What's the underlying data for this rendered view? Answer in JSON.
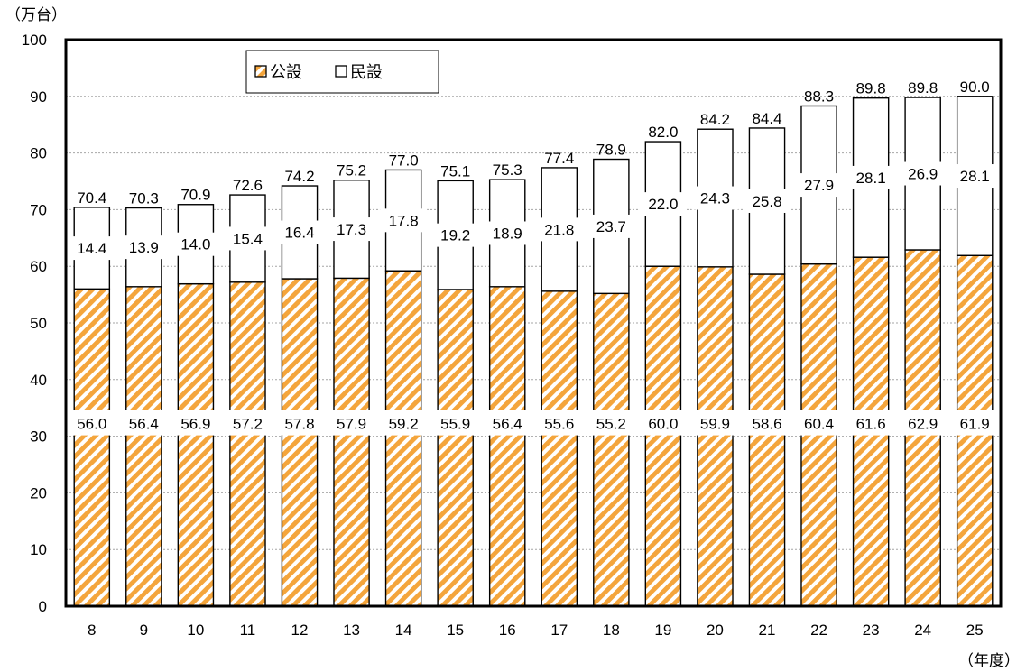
{
  "chart_data": {
    "type": "bar",
    "stacked": true,
    "y_unit_label": "（万台）",
    "x_unit_label": "（年度）",
    "categories": [
      "8",
      "9",
      "10",
      "11",
      "12",
      "13",
      "14",
      "15",
      "16",
      "17",
      "18",
      "19",
      "20",
      "21",
      "22",
      "23",
      "24",
      "25"
    ],
    "series": [
      {
        "name": "公設",
        "values": [
          56.0,
          56.4,
          56.9,
          57.2,
          57.8,
          57.9,
          59.2,
          55.9,
          56.4,
          55.6,
          55.2,
          60.0,
          59.9,
          58.6,
          60.4,
          61.6,
          62.9,
          61.9
        ],
        "color": "#f4a53c",
        "pattern": "diagonal-stripes"
      },
      {
        "name": "民設",
        "values": [
          14.4,
          13.9,
          14.0,
          15.4,
          16.4,
          17.3,
          17.8,
          19.2,
          18.9,
          21.8,
          23.7,
          22.0,
          24.3,
          25.8,
          27.9,
          28.1,
          26.9,
          28.1
        ],
        "color": "#ffffff"
      }
    ],
    "totals": [
      70.4,
      70.3,
      70.9,
      72.6,
      74.2,
      75.2,
      77.0,
      75.1,
      75.3,
      77.4,
      78.9,
      82.0,
      84.2,
      84.4,
      88.3,
      89.8,
      89.8,
      90.0
    ],
    "ylim": [
      0,
      100
    ],
    "yticks": [
      "0",
      "10",
      "20",
      "30",
      "40",
      "50",
      "60",
      "70",
      "80",
      "90",
      "100"
    ],
    "grid": true,
    "legend_position": "top-left"
  }
}
